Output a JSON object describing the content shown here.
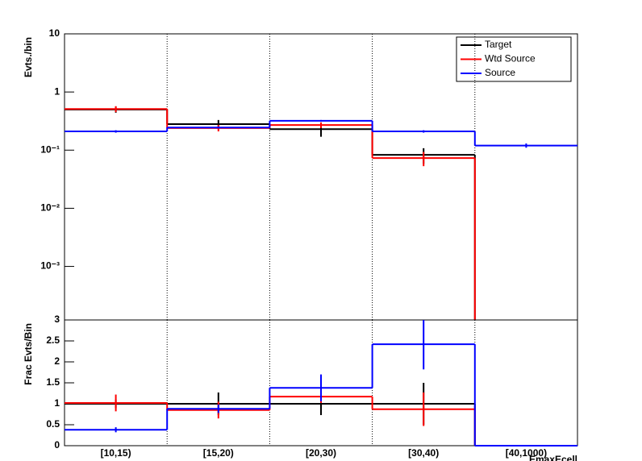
{
  "chart_data": [
    {
      "type": "histogram-step",
      "y_label": "Evts./bin",
      "log_y": true,
      "categories": [
        "[10,15)",
        "[15,20)",
        "[20,30)",
        "[30,40)",
        "[40,1000)"
      ],
      "ylim": [
        0.00012,
        10
      ],
      "yticks": [
        {
          "value": 0.001,
          "label": "10⁻³"
        },
        {
          "value": 0.01,
          "label": "10⁻²"
        },
        {
          "value": 0.1,
          "label": "10⁻¹"
        },
        1,
        10
      ],
      "legend": "top-right",
      "series": [
        {
          "name": "Target",
          "color": "#000000",
          "values": [
            0.5,
            0.28,
            0.23,
            0.083,
            null
          ],
          "errors": [
            0.06,
            0.05,
            0.06,
            0.025,
            null
          ]
        },
        {
          "name": "Wtd Source",
          "color": "#ff0000",
          "values": [
            0.51,
            0.24,
            0.27,
            0.073,
            null
          ],
          "errors": [
            0.06,
            0.03,
            0.03,
            0.02,
            null
          ]
        },
        {
          "name": "Source",
          "color": "#0000ff",
          "values": [
            0.21,
            0.245,
            0.32,
            0.21,
            0.12
          ],
          "errors": [
            0.01,
            0.01,
            0.01,
            0.01,
            0.01
          ]
        }
      ]
    },
    {
      "type": "histogram-step",
      "y_label": "Frac Evts/Bin",
      "x_label": "EmaxEcell",
      "log_y": false,
      "categories": [
        "[10,15)",
        "[15,20)",
        "[20,30)",
        "[30,40)",
        "[40,1000)"
      ],
      "ylim": [
        0,
        3
      ],
      "yticks": [
        0,
        0.5,
        1,
        1.5,
        2,
        2.5,
        3
      ],
      "series": [
        {
          "name": "Target",
          "color": "#000000",
          "values": [
            1,
            1,
            1,
            1,
            null
          ],
          "errors": [
            0.1,
            0.27,
            0.27,
            0.5,
            null
          ]
        },
        {
          "name": "Wtd Source",
          "color": "#ff0000",
          "values": [
            1.02,
            0.85,
            1.17,
            0.87,
            null
          ],
          "errors": [
            0.2,
            0.2,
            0.15,
            0.4,
            null
          ]
        },
        {
          "name": "Source",
          "color": "#0000ff",
          "values": [
            0.38,
            0.88,
            1.38,
            2.42,
            0
          ],
          "errors": [
            0.06,
            0.1,
            0.32,
            0.6,
            0
          ]
        }
      ]
    }
  ]
}
